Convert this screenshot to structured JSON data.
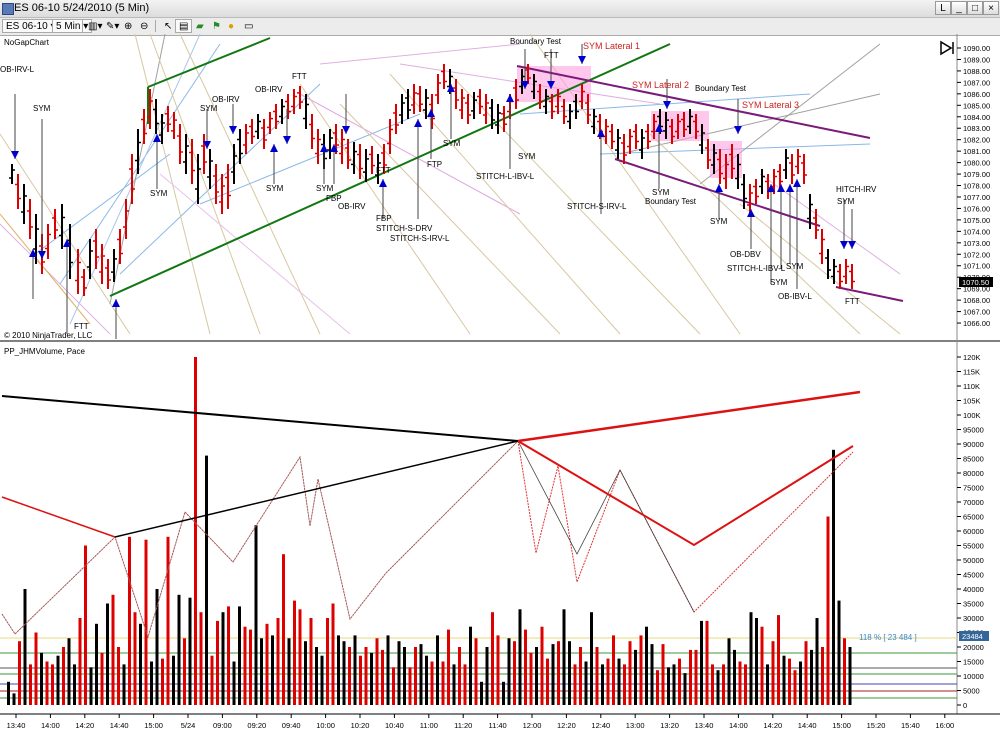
{
  "window": {
    "title": "ES 06-10  5/24/2010 (5 Min)",
    "buttons": [
      "L",
      "_",
      "□",
      "×"
    ]
  },
  "toolbar": {
    "instrument": "ES 06-10",
    "interval": "5 Min"
  },
  "upper_panel": {
    "name": "NoGapChart",
    "copyright": "© 2010 NinjaTrader, LLC",
    "price_ticks": [
      "1090.00",
      "1089.00",
      "1088.00",
      "1087.00",
      "1086.00",
      "1085.00",
      "1084.00",
      "1083.00",
      "1082.00",
      "1081.00",
      "1080.00",
      "1079.00",
      "1078.00",
      "1077.00",
      "1076.00",
      "1075.00",
      "1074.00",
      "1073.00",
      "1072.00",
      "1071.00",
      "1070.00",
      "1069.00",
      "1068.00",
      "1067.00",
      "1066.00"
    ],
    "last_price": "1070.50",
    "annotations": {
      "ob_irv_l": "OB-IRV-L",
      "sym": "SYM",
      "ftt": "FTT",
      "ob_irv": "OB-IRV",
      "fbp": "FBP",
      "ftp": "FTP",
      "stitch_s_drv": "STITCH-S-DRV",
      "stitch_s_irv_l": "STITCH-S-IRV-L",
      "boundary_test": "Boundary Test",
      "sym_lateral_1": "SYM Lateral 1",
      "sym_lateral_2": "SYM Lateral 2",
      "sym_lateral_3": "SYM Lateral 3",
      "stitch_l_ibv_l": "STITCH-L-IBV-L",
      "stitch_s_irv_l2": "STITCH-S-IRV-L",
      "ob_dbv": "OB-DBV",
      "stitch_l_ibv_l2": "STITCH-L-IBV-L",
      "ob_ibv_l": "OB-IBV-L",
      "hitch_irv": "HITCH-IRV"
    }
  },
  "lower_panel": {
    "name": "PP_JHMVolume, Pace",
    "volume_ticks": [
      "120K",
      "115K",
      "110K",
      "105K",
      "100K",
      "95000",
      "90000",
      "85000",
      "80000",
      "75000",
      "70000",
      "65000",
      "60000",
      "55000",
      "50000",
      "45000",
      "40000",
      "35000",
      "30000",
      "25000",
      "20000",
      "15000",
      "10000",
      "5000",
      "0"
    ],
    "pace_label": "118 % [ 23 484 ]",
    "last_value": "23484"
  },
  "time_axis": [
    "13:40",
    "14:00",
    "14:20",
    "14:40",
    "15:00",
    "5/24",
    "09:00",
    "09:20",
    "09:40",
    "10:00",
    "10:20",
    "10:40",
    "11:00",
    "11:20",
    "11:40",
    "12:00",
    "12:20",
    "12:40",
    "13:00",
    "13:20",
    "13:40",
    "14:00",
    "14:20",
    "14:40",
    "15:00",
    "15:20",
    "15:40",
    "16:00"
  ],
  "colors": {
    "up": "#000000",
    "down": "#dd0000",
    "signal_arrow": "#0000cc",
    "lateral_box": "#ff99dd",
    "lateral_text": "#cc2222",
    "trend_green": "#117711",
    "channel_purple": "#7a1a7a"
  },
  "volumes": [
    8,
    4,
    22,
    40,
    14,
    25,
    18,
    15,
    14,
    17,
    20,
    23,
    14,
    30,
    55,
    13,
    28,
    18,
    35,
    38,
    20,
    14,
    58,
    32,
    28,
    57,
    15,
    40,
    16,
    58,
    17,
    38,
    23,
    37,
    120,
    32,
    86,
    17,
    29,
    32,
    34,
    15,
    34,
    27,
    26,
    62,
    23,
    28,
    24,
    30,
    52,
    23,
    36,
    33,
    22,
    30,
    20,
    17,
    30,
    35,
    24,
    22,
    20,
    24,
    17,
    20,
    18,
    23,
    19,
    24,
    13,
    22,
    20,
    13,
    20,
    21,
    17,
    15,
    24,
    15,
    26,
    14,
    20,
    14,
    27,
    23,
    8,
    20,
    32,
    24,
    8,
    23,
    22,
    33,
    26,
    18,
    20,
    27,
    16,
    21,
    22,
    33,
    22,
    14,
    20,
    15,
    32,
    20,
    14,
    16,
    24,
    16,
    14,
    22,
    19,
    24,
    27,
    21,
    12,
    21,
    13,
    14,
    16,
    11,
    19,
    19,
    29,
    29,
    14,
    12,
    14,
    23,
    19,
    15,
    14,
    32,
    30,
    27,
    14,
    22,
    31,
    17,
    16,
    12,
    15,
    22,
    19,
    30,
    20,
    65,
    88,
    36,
    23,
    20
  ]
}
